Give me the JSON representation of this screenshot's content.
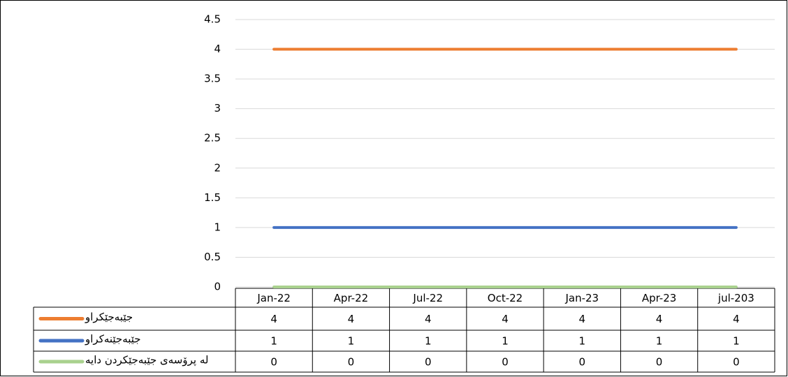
{
  "chart_data": {
    "type": "line",
    "categories": [
      "Jan-22",
      "Apr-22",
      "Jul-22",
      "Oct-22",
      "Jan-23",
      "Apr-23",
      "jul-203"
    ],
    "series": [
      {
        "name": "جێبەجێکراو",
        "color": "#ed7d31",
        "values": [
          4,
          4,
          4,
          4,
          4,
          4,
          4
        ]
      },
      {
        "name": "جێبەجێنەکراو",
        "color": "#4472c4",
        "values": [
          1,
          1,
          1,
          1,
          1,
          1,
          1
        ]
      },
      {
        "name": "لە پرۆسەی جێبەجێکردن دایە",
        "color": "#a9d18e",
        "values": [
          0,
          0,
          0,
          0,
          0,
          0,
          0
        ]
      }
    ],
    "ylim": [
      0,
      4.5
    ],
    "yticks": [
      0,
      0.5,
      1,
      1.5,
      2,
      2.5,
      3,
      3.5,
      4,
      4.5
    ],
    "grid": true,
    "data_table": true
  }
}
